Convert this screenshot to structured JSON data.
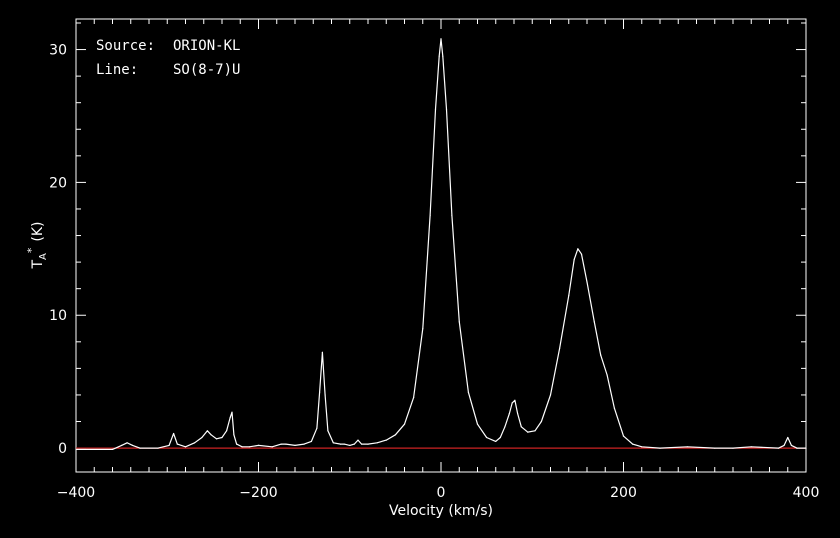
{
  "chart_data": {
    "type": "line",
    "xlabel": "Velocity (km/s)",
    "ylabel_main": "T",
    "ylabel_sub": "A",
    "ylabel_sup": "*",
    "ylabel_unit": "(K)",
    "xlim": [
      -400,
      400
    ],
    "ylim": [
      -1.8,
      32.3
    ],
    "xticks": [
      -400,
      -200,
      0,
      200,
      400
    ],
    "yticks": [
      0,
      10,
      20,
      30
    ],
    "annotations": {
      "source_label": "Source:",
      "source_value": "ORION-KL",
      "line_label": "Line:",
      "line_value": "SO(8-7)U"
    },
    "baseline": 0,
    "colors": {
      "background": "#000000",
      "frame": "#ffffff",
      "spectrum": "#ffffff",
      "baseline": "#cc2222"
    },
    "series": [
      {
        "x": [
          -400,
          -360,
          -350,
          -344,
          -338,
          -330,
          -310,
          -298,
          -293,
          -289,
          -280,
          -270,
          -262,
          -256,
          -252,
          -246,
          -240,
          -235,
          -231,
          -229,
          -227,
          -224,
          -218,
          -210,
          -200,
          -185,
          -175,
          -170,
          -160,
          -150,
          -142,
          -136,
          -133,
          -130,
          -127,
          -124,
          -118,
          -110,
          -106,
          -100,
          -95,
          -91,
          -87,
          -80,
          -70,
          -60,
          -50,
          -40,
          -30,
          -20,
          -12,
          -6,
          -2,
          0,
          2,
          6,
          12,
          20,
          30,
          40,
          50,
          60,
          65,
          70,
          75,
          78,
          81,
          84,
          88,
          95,
          103,
          110,
          120,
          130,
          140,
          146,
          150,
          154,
          160,
          168,
          175,
          182,
          190,
          200,
          210,
          220,
          240,
          270,
          300,
          320,
          340,
          370,
          376,
          380,
          384,
          390,
          400
        ],
        "y": [
          -0.1,
          -0.1,
          0.2,
          0.4,
          0.2,
          0.0,
          0.0,
          0.2,
          1.1,
          0.3,
          0.1,
          0.4,
          0.8,
          1.3,
          1.0,
          0.7,
          0.8,
          1.3,
          2.3,
          2.7,
          1.0,
          0.3,
          0.1,
          0.1,
          0.2,
          0.1,
          0.3,
          0.3,
          0.2,
          0.3,
          0.5,
          1.5,
          4.2,
          7.2,
          4.0,
          1.3,
          0.4,
          0.3,
          0.3,
          0.2,
          0.3,
          0.6,
          0.3,
          0.3,
          0.4,
          0.6,
          1.0,
          1.8,
          3.8,
          9.0,
          17.5,
          25.5,
          29.5,
          30.8,
          29.5,
          25.5,
          17.5,
          9.5,
          4.2,
          1.8,
          0.8,
          0.5,
          0.8,
          1.6,
          2.6,
          3.4,
          3.6,
          2.6,
          1.6,
          1.2,
          1.3,
          2.0,
          4.0,
          7.5,
          11.5,
          14.2,
          15.0,
          14.6,
          12.5,
          9.5,
          7.0,
          5.5,
          3.0,
          0.9,
          0.3,
          0.1,
          0.0,
          0.1,
          0.0,
          0.0,
          0.1,
          0.0,
          0.2,
          0.8,
          0.2,
          0.0,
          0.0
        ]
      }
    ]
  }
}
